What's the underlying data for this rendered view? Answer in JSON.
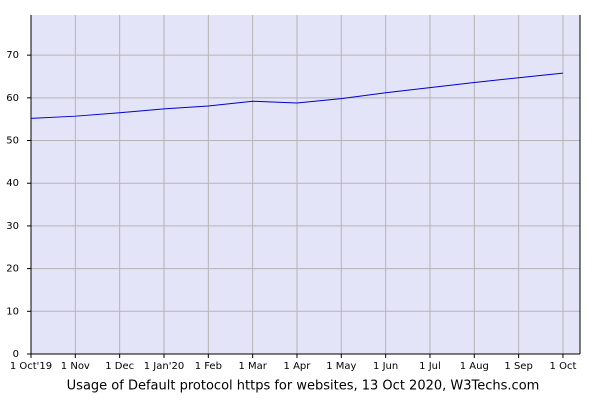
{
  "chart_data": {
    "type": "line",
    "title": "Usage of Default protocol https for websites, 13 Oct 2020, W3Techs.com",
    "categories": [
      "1 Oct'19",
      "1 Nov",
      "1 Dec",
      "1 Jan'20",
      "1 Feb",
      "1 Mar",
      "1 Apr",
      "1 May",
      "1 Jun",
      "1 Jul",
      "1 Aug",
      "1 Sep",
      "1 Oct"
    ],
    "series": [
      {
        "color": "#0000cc",
        "values": [
          55.2,
          55.7,
          56.5,
          57.4,
          58.1,
          59.2,
          58.8,
          59.8,
          61.2,
          62.4,
          63.6,
          64.7,
          65.8
        ]
      }
    ],
    "ylim": [
      0,
      79.4
    ],
    "yticks": [
      0,
      10,
      20,
      30,
      40,
      50,
      60,
      70
    ],
    "grid": true
  }
}
